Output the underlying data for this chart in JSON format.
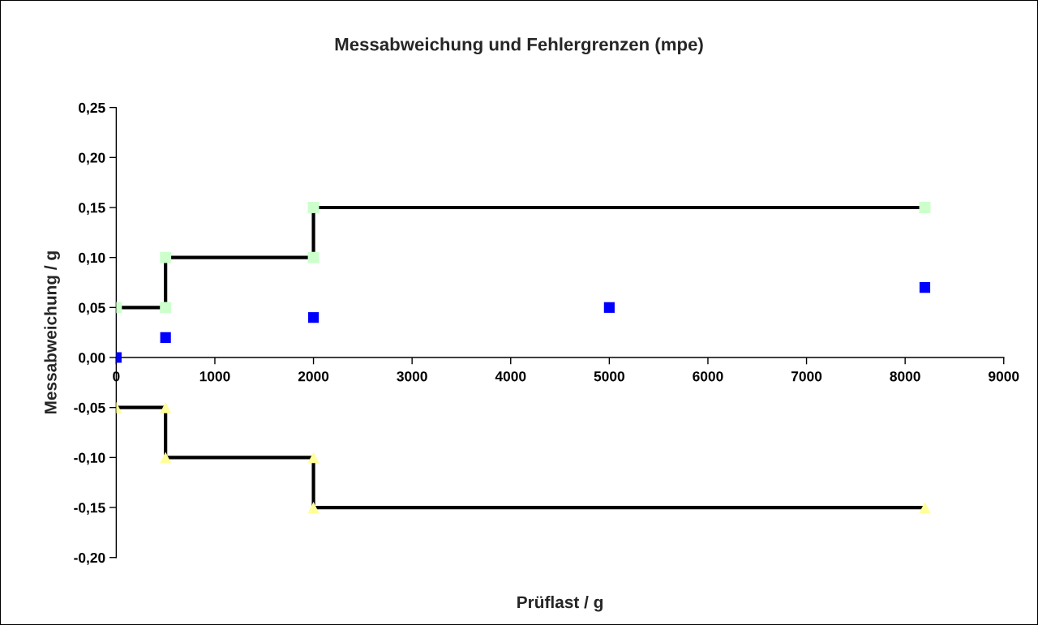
{
  "chart_data": {
    "type": "line",
    "title": "Messabweichung und Fehlergrenzen (mpe)",
    "xlabel": "Prüflast / g",
    "ylabel": "Messabweichung / g",
    "xlim": [
      0,
      9000
    ],
    "xticks": [
      0,
      1000,
      2000,
      3000,
      4000,
      5000,
      6000,
      7000,
      8000,
      9000
    ],
    "ylim": [
      -0.2,
      0.25
    ],
    "yticks": [
      {
        "value": -0.2,
        "label": "-0,20"
      },
      {
        "value": -0.15,
        "label": "-0,15"
      },
      {
        "value": -0.1,
        "label": "-0,10"
      },
      {
        "value": -0.05,
        "label": "-0,05"
      },
      {
        "value": 0,
        "label": "0,00"
      },
      {
        "value": 0.05,
        "label": "0,05"
      },
      {
        "value": 0.1,
        "label": "0,10"
      },
      {
        "value": 0.15,
        "label": "0,15"
      },
      {
        "value": 0.2,
        "label": "0,20"
      },
      {
        "value": 0.25,
        "label": "0,25"
      }
    ],
    "grid": false,
    "legend": false,
    "line_style": "solid",
    "series": [
      {
        "marker": "square",
        "color": "#000000",
        "x": [
          0,
          500,
          500,
          2000,
          2000,
          8200
        ],
        "values": [
          0.05,
          0.05,
          0.1,
          0.1,
          0.15,
          0.15
        ]
      },
      {
        "marker": "triangle",
        "color": "#000000",
        "x": [
          0,
          500,
          500,
          2000,
          2000,
          8200
        ],
        "values": [
          -0.05,
          -0.05,
          -0.1,
          -0.1,
          -0.15,
          -0.15
        ]
      },
      {
        "type": "scatter",
        "marker": "square",
        "color": "#0000ff",
        "x": [
          0,
          500,
          2000,
          5000,
          8200
        ],
        "values": [
          0,
          0.02,
          0.04,
          0.05,
          0.07
        ]
      }
    ]
  }
}
